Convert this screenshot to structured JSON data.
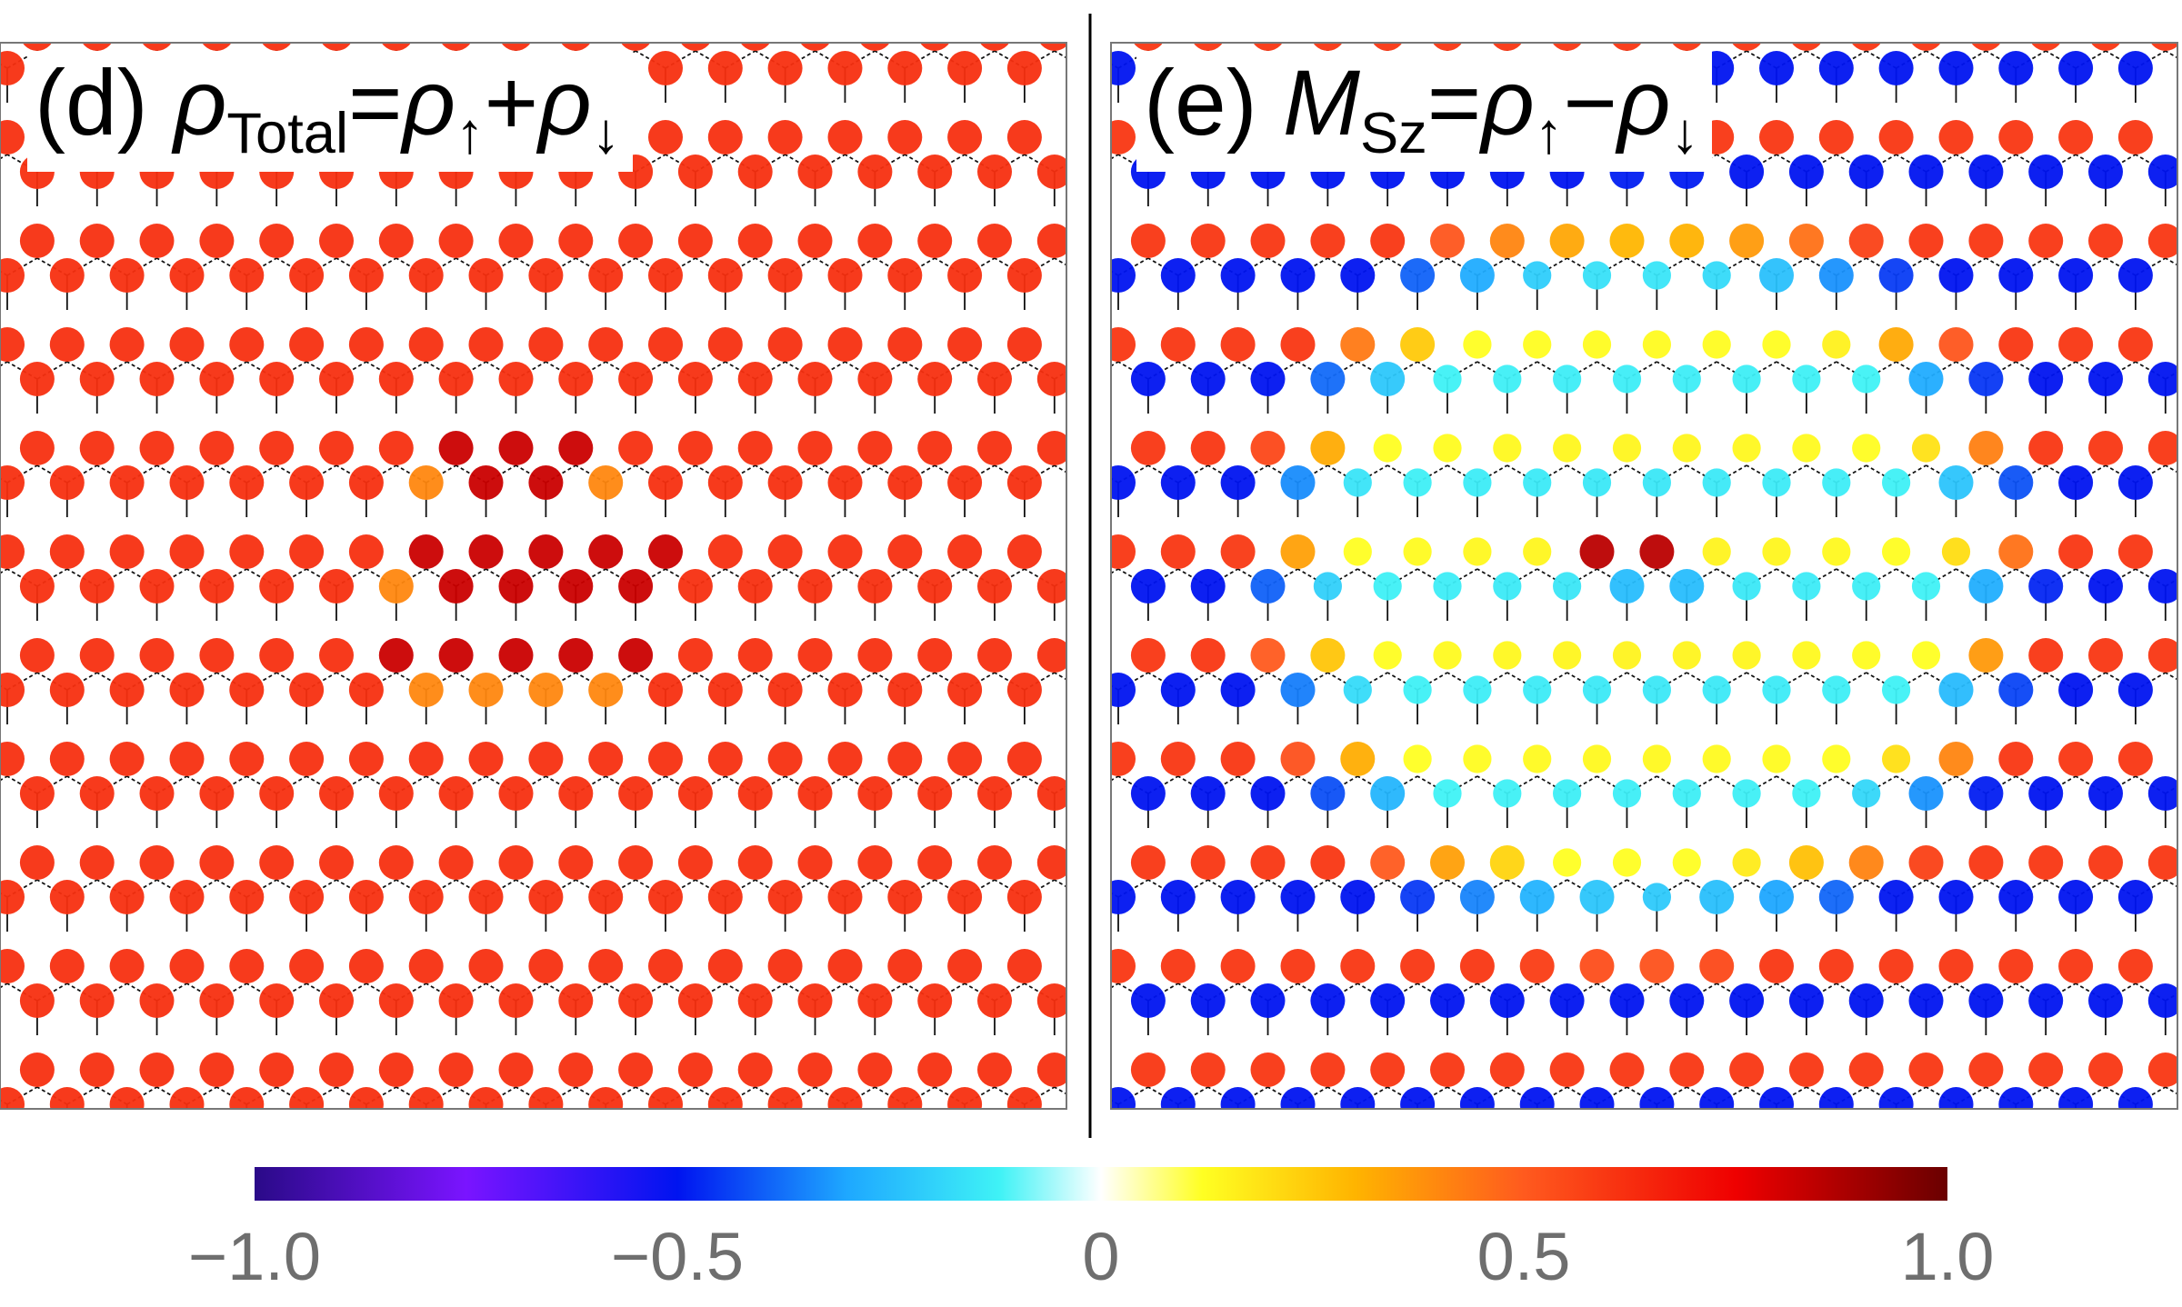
{
  "chart_data": [
    {
      "type": "heatmap",
      "panel": "(d)",
      "title_parts": [
        "(d) ",
        "ρ",
        "Total",
        "=",
        "ρ",
        "↑",
        "+",
        "ρ",
        "↓"
      ],
      "quantity": "total charge density on honeycomb lattice sites",
      "lattice": "honeycomb",
      "background_site_value": 0.62,
      "central_region_site_values": [
        0.82,
        0.4
      ],
      "color_range": [
        -1.0,
        1.0
      ]
    },
    {
      "type": "heatmap",
      "panel": "(e)",
      "title_parts": [
        "(e) ",
        "M",
        "Sz",
        "=",
        "ρ",
        "↑",
        "−",
        "ρ",
        "↓"
      ],
      "quantity": "spin magnetization on honeycomb lattice sites",
      "lattice": "honeycomb",
      "sublattice_A_value": 0.6,
      "sublattice_B_value": -0.5,
      "central_region_values": [
        0.15,
        -0.15
      ],
      "central_site_values": [
        0.85,
        -0.25
      ],
      "color_range": [
        -1.0,
        1.0
      ]
    }
  ],
  "colorbar": {
    "min": -1.0,
    "max": 1.0,
    "tick_values": [
      -1.0,
      -0.5,
      0,
      0.5,
      1.0
    ],
    "tick_labels": [
      "−1.0",
      "−0.5",
      "0",
      "0.5",
      "1.0"
    ],
    "stops": [
      {
        "value": -1.0,
        "color": "#2a0a88"
      },
      {
        "value": -0.75,
        "color": "#7a14ff"
      },
      {
        "value": -0.5,
        "color": "#0014f0"
      },
      {
        "value": -0.3,
        "color": "#1ea8ff"
      },
      {
        "value": -0.12,
        "color": "#3ff2f6"
      },
      {
        "value": 0.0,
        "color": "#ffffff"
      },
      {
        "value": 0.12,
        "color": "#ffff22"
      },
      {
        "value": 0.3,
        "color": "#ffb400"
      },
      {
        "value": 0.5,
        "color": "#ff5a1e"
      },
      {
        "value": 0.75,
        "color": "#ef0000"
      },
      {
        "value": 1.0,
        "color": "#6a0000"
      }
    ]
  }
}
